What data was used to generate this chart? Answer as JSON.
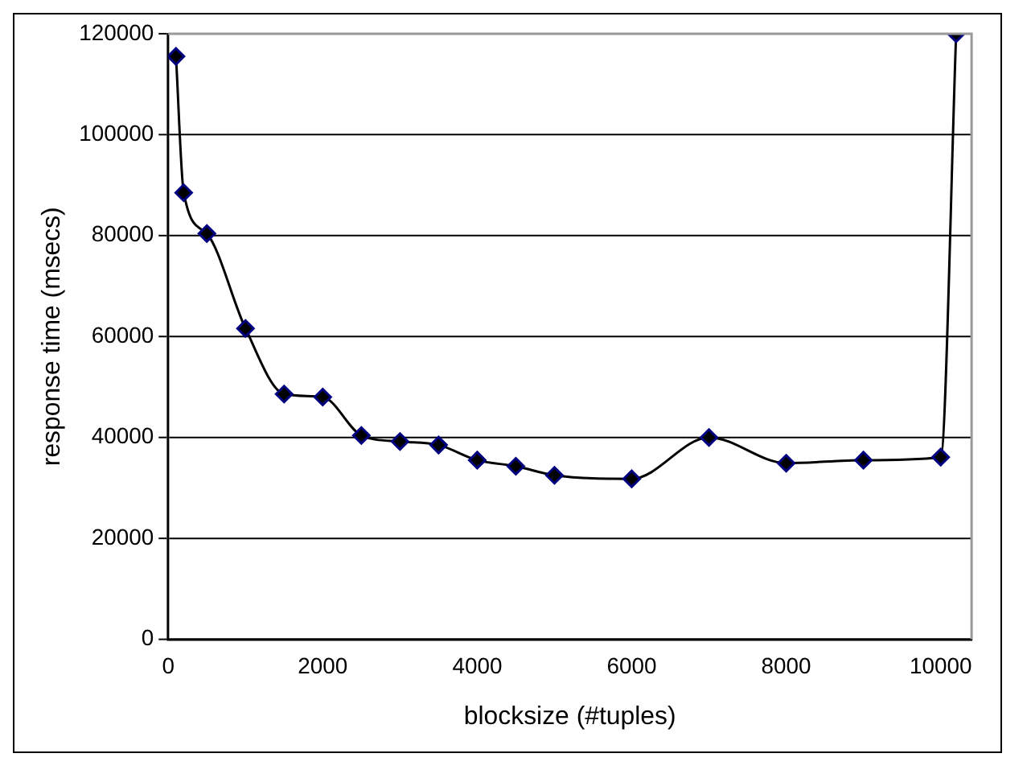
{
  "chart_data": {
    "type": "line",
    "xlabel": "blocksize (#tuples)",
    "ylabel": "response time (msecs)",
    "x": [
      100,
      200,
      500,
      1000,
      1500,
      2000,
      2500,
      3000,
      3500,
      4000,
      4500,
      5000,
      6000,
      7000,
      8000,
      9000,
      10000,
      10200
    ],
    "series": [
      {
        "color": "#000000",
        "values": [
          115500,
          88500,
          80400,
          61600,
          48600,
          48000,
          40400,
          39200,
          38500,
          35500,
          34300,
          32500,
          31800,
          40000,
          34900,
          35500,
          36100,
          120000
        ]
      }
    ],
    "xlim": [
      0,
      10400
    ],
    "xticks": [
      0,
      2000,
      4000,
      6000,
      8000,
      10000
    ],
    "ylim": [
      0,
      120000
    ],
    "yticks": [
      0,
      20000,
      40000,
      60000,
      80000,
      100000,
      120000
    ],
    "grid": "y",
    "legend": false,
    "marker": "diamond",
    "line_style": "solid"
  }
}
